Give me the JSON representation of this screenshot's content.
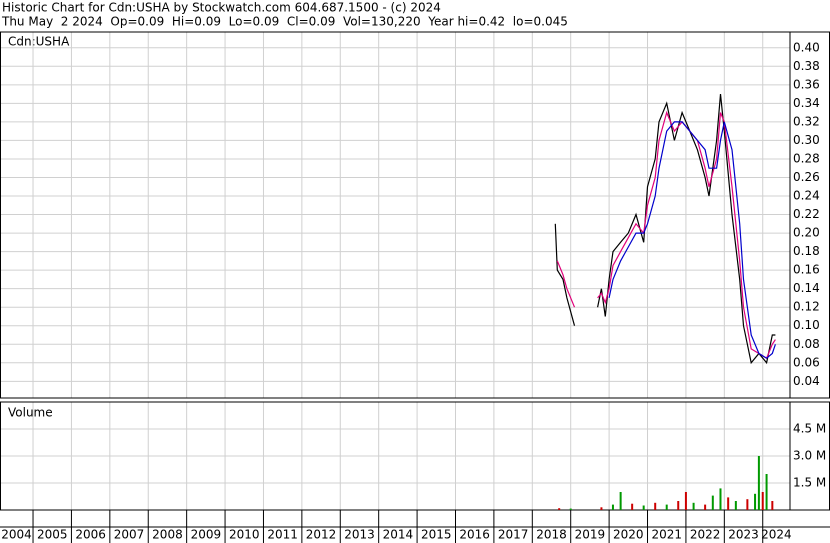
{
  "header": {
    "line1": "Historic Chart for Cdn:USHA by Stockwatch.com 604.687.1500 - (c) 2024",
    "line2": "Thu May  2 2024  Op=0.09  Hi=0.09  Lo=0.09  Cl=0.09  Vol=130,220  Year hi=0.42  lo=0.045"
  },
  "chart_data": [
    {
      "type": "line",
      "label": "Cdn:USHA",
      "x": [
        2018.6,
        2018.65,
        2018.8,
        2018.9,
        2019.1,
        2019.4,
        2019.7,
        2019.8,
        2019.9,
        2020.0,
        2020.1,
        2020.3,
        2020.5,
        2020.7,
        2020.9,
        2021.0,
        2021.2,
        2021.3,
        2021.5,
        2021.7,
        2021.9,
        2022.1,
        2022.3,
        2022.5,
        2022.6,
        2022.8,
        2022.9,
        2023.0,
        2023.2,
        2023.4,
        2023.5,
        2023.7,
        2023.9,
        2024.1,
        2024.25,
        2024.33
      ],
      "series": [
        {
          "color": "#000000",
          "values": [
            0.21,
            0.16,
            0.15,
            0.13,
            0.1,
            null,
            0.12,
            0.14,
            0.11,
            0.15,
            0.18,
            0.19,
            0.2,
            0.22,
            0.19,
            0.25,
            0.28,
            0.32,
            0.34,
            0.3,
            0.33,
            0.31,
            0.29,
            0.26,
            0.24,
            0.3,
            0.35,
            0.31,
            0.22,
            0.15,
            0.1,
            0.06,
            0.07,
            0.06,
            0.09,
            0.09
          ]
        },
        {
          "color": "#e0007a",
          "values": [
            null,
            0.17,
            0.155,
            0.14,
            0.12,
            null,
            0.13,
            0.135,
            0.125,
            0.14,
            0.165,
            0.18,
            0.195,
            0.21,
            0.2,
            0.23,
            0.26,
            0.3,
            0.33,
            0.31,
            0.32,
            0.31,
            0.3,
            0.27,
            0.25,
            0.28,
            0.33,
            0.32,
            0.25,
            0.17,
            0.12,
            0.075,
            0.07,
            0.065,
            0.08,
            0.085
          ]
        },
        {
          "color": "#0000cc",
          "values": [
            null,
            null,
            null,
            null,
            null,
            null,
            null,
            null,
            null,
            0.13,
            0.15,
            0.17,
            0.185,
            0.2,
            0.2,
            0.21,
            0.24,
            0.27,
            0.31,
            0.32,
            0.32,
            0.31,
            0.3,
            0.29,
            0.27,
            0.27,
            0.3,
            0.32,
            0.29,
            0.21,
            0.15,
            0.09,
            0.07,
            0.065,
            0.07,
            0.08
          ]
        }
      ],
      "ylim": [
        0.022,
        0.417
      ],
      "yticks": [
        0.04,
        0.06,
        0.08,
        {
          "value": 0.1,
          "label": "0.10"
        },
        0.12,
        0.14,
        0.16,
        0.18,
        {
          "value": 0.2,
          "label": "0.20"
        },
        0.22,
        0.24,
        0.26,
        0.28,
        {
          "value": 0.3,
          "label": "0.30"
        },
        0.32,
        0.34,
        0.36,
        0.38,
        {
          "value": 0.4,
          "label": "0.40"
        }
      ],
      "grid": true
    },
    {
      "type": "bar",
      "label": "Volume",
      "x": [
        2018.7,
        2019.0,
        2019.8,
        2020.1,
        2020.3,
        2020.6,
        2020.9,
        2021.2,
        2021.5,
        2021.8,
        2022.0,
        2022.2,
        2022.5,
        2022.7,
        2022.9,
        2023.1,
        2023.3,
        2023.6,
        2023.8,
        2023.9,
        2024.0,
        2024.1,
        2024.25
      ],
      "values": [
        100000,
        80000,
        150000,
        300000,
        1000000,
        350000,
        250000,
        400000,
        300000,
        500000,
        1000000,
        400000,
        300000,
        800000,
        1200000,
        700000,
        500000,
        600000,
        900000,
        3000000,
        1000000,
        2000000,
        500000
      ],
      "colors": [
        "#cc0000",
        "#009900",
        "#cc0000",
        "#009900",
        "#009900",
        "#cc0000",
        "#009900",
        "#cc0000",
        "#009900",
        "#cc0000",
        "#cc0000",
        "#009900",
        "#cc0000",
        "#009900",
        "#009900",
        "#cc0000",
        "#009900",
        "#cc0000",
        "#009900",
        "#009900",
        "#cc0000",
        "#009900",
        "#cc0000"
      ],
      "ylim": [
        0,
        6000000
      ],
      "yticks": [
        {
          "value": 1500000,
          "label": "1.5 M"
        },
        {
          "value": 3000000,
          "label": "3.0 M"
        },
        {
          "value": 4500000,
          "label": "4.5 M"
        }
      ],
      "xlim": [
        2004.14,
        2024.71
      ],
      "xticks": [
        2004,
        2005,
        2006,
        2007,
        2008,
        2009,
        2010,
        2011,
        2012,
        2013,
        2014,
        2015,
        2016,
        2017,
        2018,
        2019,
        2020,
        2021,
        2022,
        2023,
        2024
      ],
      "grid": true
    }
  ]
}
